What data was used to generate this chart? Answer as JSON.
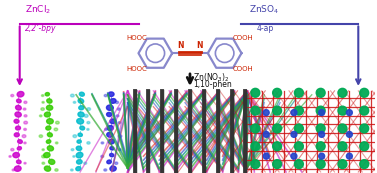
{
  "bg_color": "#ffffff",
  "molecule_color": "#8888cc",
  "azo_n_color": "#cc2200",
  "arrow_color_left": "#bb00bb",
  "arrow_color_right": "#4444aa",
  "arrow_color_down": "#111111",
  "text_left_top": "ZnCl$_2$",
  "text_left_bot": "2,2’-bpy",
  "text_right_top": "ZnSO$_4$",
  "text_right_bot": "4-ap",
  "text_center": "Zn(NO$_3$)$_2$",
  "text_center2": "1,10-phen",
  "figsize": [
    3.77,
    1.73
  ],
  "dpi": 100,
  "left_chain_colors": [
    "#cc00cc",
    "#33cc00",
    "#00bbcc",
    "#2222dd"
  ],
  "mid_rod_color": "#333333",
  "mid_chain_colors": [
    "#cc33cc",
    "#dd4444",
    "#4455cc",
    "#008888",
    "#33aa33"
  ],
  "right_grid_color": "#cc1111",
  "right_node_color1": "#00aa55",
  "right_node_color2": "#2244cc"
}
